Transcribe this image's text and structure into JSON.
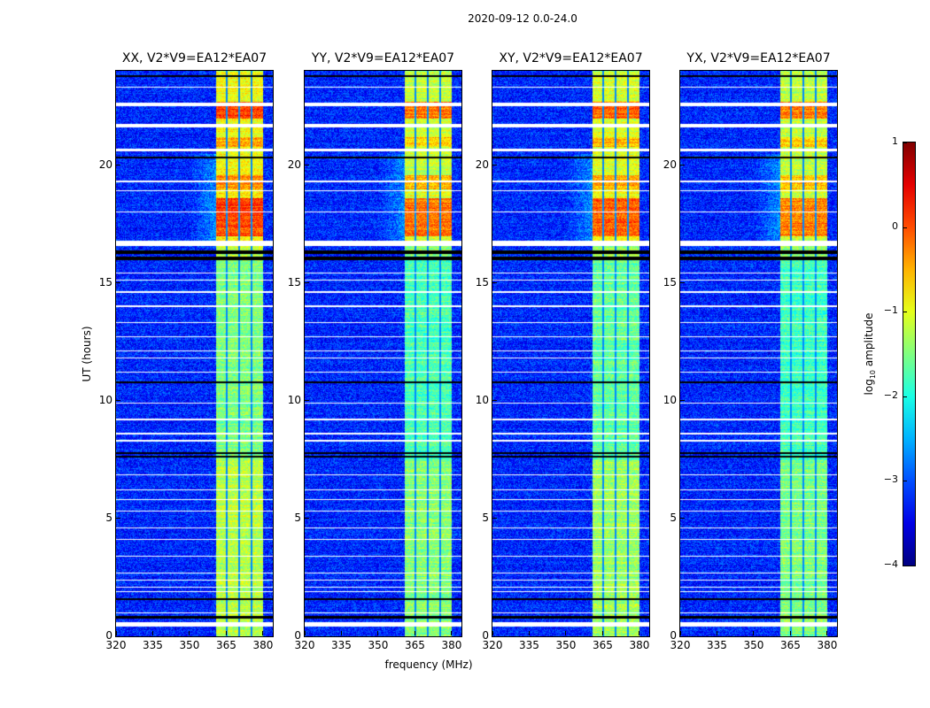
{
  "chart_data": {
    "type": "heatmap",
    "title": "2020-09-12 0.0-24.0",
    "xlabel": "frequency (MHz)",
    "ylabel": "UT (hours)",
    "xlim": [
      320,
      384
    ],
    "ylim": [
      0,
      24
    ],
    "xticks": [
      "320",
      "335",
      "350",
      "365",
      "380"
    ],
    "yticks": [
      "0",
      "5",
      "10",
      "15",
      "20"
    ],
    "panels": [
      {
        "title": "XX, V2*V9=EA12*EA07",
        "band_offset": 0.0
      },
      {
        "title": "YY, V2*V9=EA12*EA07",
        "band_offset": -0.25
      },
      {
        "title": "XY, V2*V9=EA12*EA07",
        "band_offset": -0.15
      },
      {
        "title": "YX, V2*V9=EA12*EA07",
        "band_offset": -0.3
      }
    ],
    "colorbar": {
      "label_prefix": "log",
      "label_sub": "10",
      "label_suffix": " amplitude",
      "ticks": [
        "1",
        "0",
        "−1",
        "−2",
        "−3",
        "−4"
      ],
      "range": [
        -4,
        1
      ],
      "colormap": "jet"
    },
    "background_level": -3.2,
    "rfi_band_mhz": [
      360.5,
      380
    ],
    "band_channel_gaps_mhz": [
      365,
      370,
      375
    ],
    "band_level_segments": [
      {
        "from": 0,
        "to": 7.5,
        "level": -1.2
      },
      {
        "from": 7.5,
        "to": 16,
        "level": -1.5
      },
      {
        "from": 16.8,
        "to": 17,
        "level": -0.8
      },
      {
        "from": 17,
        "to": 18.6,
        "level": 0.05
      },
      {
        "from": 18.6,
        "to": 19,
        "level": -0.8
      },
      {
        "from": 19,
        "to": 19.6,
        "level": -0.3
      },
      {
        "from": 19.6,
        "to": 20.8,
        "level": -0.9
      },
      {
        "from": 20.8,
        "to": 21.2,
        "level": -0.4
      },
      {
        "from": 21.2,
        "to": 22,
        "level": -0.9
      },
      {
        "from": 22,
        "to": 22.7,
        "level": 0.05
      },
      {
        "from": 22.7,
        "to": 24,
        "level": -0.9
      }
    ],
    "flagged_rows_hours": [
      [
        0.45,
        0.62
      ],
      [
        1.0,
        1.04
      ],
      [
        1.9,
        1.94
      ],
      [
        2.1,
        2.14
      ],
      [
        2.4,
        2.44
      ],
      [
        2.7,
        2.74
      ],
      [
        3.4,
        3.45
      ],
      [
        4.1,
        4.15
      ],
      [
        4.6,
        4.65
      ],
      [
        5.3,
        5.35
      ],
      [
        5.8,
        5.85
      ],
      [
        6.2,
        6.25
      ],
      [
        6.85,
        6.9
      ],
      [
        8.3,
        8.35
      ],
      [
        8.6,
        8.65
      ],
      [
        9.2,
        9.25
      ],
      [
        9.9,
        9.95
      ],
      [
        11.2,
        11.25
      ],
      [
        11.8,
        11.85
      ],
      [
        12.1,
        12.15
      ],
      [
        12.7,
        12.75
      ],
      [
        13.3,
        13.35
      ],
      [
        14.0,
        14.05
      ],
      [
        14.6,
        14.65
      ],
      [
        15.1,
        15.15
      ],
      [
        15.4,
        15.45
      ],
      [
        16.6,
        16.8
      ],
      [
        18.0,
        18.05
      ],
      [
        18.9,
        18.95
      ],
      [
        19.3,
        19.35
      ],
      [
        20.6,
        20.7
      ],
      [
        21.6,
        21.75
      ],
      [
        22.5,
        22.65
      ],
      [
        23.3,
        23.35
      ]
    ],
    "dropout_rows_hours": [
      [
        0.78,
        0.9
      ],
      [
        1.55,
        1.62
      ],
      [
        7.6,
        7.68
      ],
      [
        7.75,
        7.83
      ],
      [
        10.75,
        10.85
      ],
      [
        16.0,
        16.12
      ],
      [
        16.25,
        16.4
      ],
      [
        20.3,
        20.38
      ],
      [
        23.75,
        23.82
      ]
    ]
  }
}
